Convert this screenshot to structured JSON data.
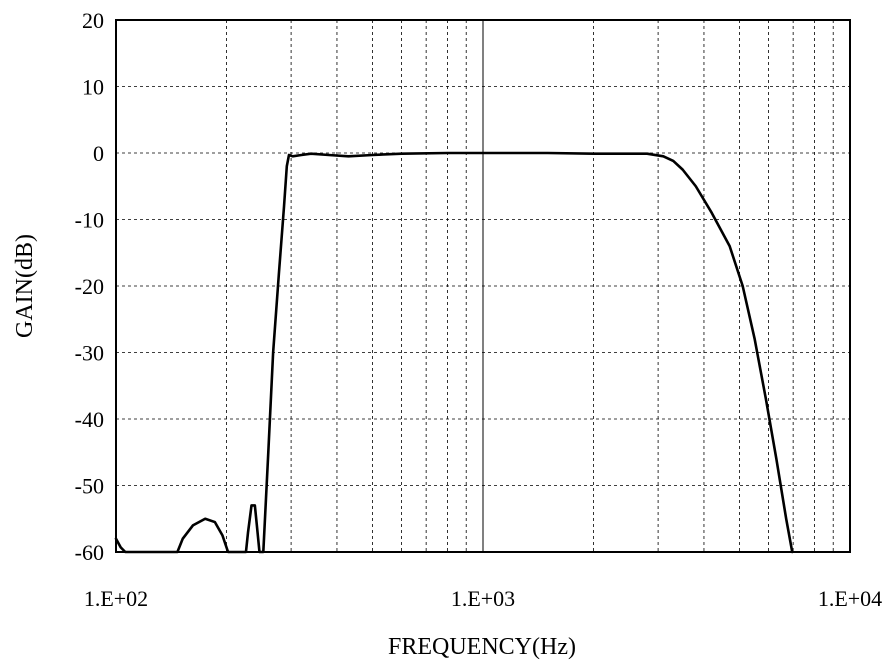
{
  "chart_data": {
    "type": "line",
    "title": "",
    "xlabel": "FREQUENCY(Hz)",
    "ylabel": "GAIN(dB)",
    "xscale": "log",
    "xlim": [
      100,
      10000
    ],
    "ylim": [
      -60,
      20
    ],
    "grid": true,
    "legend": "none",
    "x_tick_values": [
      100,
      1000,
      10000
    ],
    "x_tick_labels": [
      "1.E+02",
      "1.E+03",
      "1.E+04"
    ],
    "y_ticks": [
      20,
      10,
      0,
      -10,
      -20,
      -30,
      -40,
      -50,
      -60
    ],
    "line_color": "#000000",
    "series": [
      {
        "points": [
          [
            100,
            -58
          ],
          [
            103,
            -59.3
          ],
          [
            106,
            -60
          ],
          [
            147,
            -60
          ],
          [
            152,
            -58
          ],
          [
            162,
            -56
          ],
          [
            175,
            -55
          ],
          [
            186,
            -55.5
          ],
          [
            195,
            -57.5
          ],
          [
            202,
            -60
          ],
          [
            226,
            -60
          ],
          [
            229,
            -57
          ],
          [
            234,
            -53
          ],
          [
            239,
            -53
          ],
          [
            242,
            -56
          ],
          [
            246,
            -60
          ],
          [
            252,
            -60
          ],
          [
            260,
            -45
          ],
          [
            268,
            -30
          ],
          [
            278,
            -18
          ],
          [
            287,
            -8
          ],
          [
            292,
            -2
          ],
          [
            296,
            -0.3
          ],
          [
            303,
            -0.5
          ],
          [
            320,
            -0.3
          ],
          [
            340,
            -0.1
          ],
          [
            380,
            -0.3
          ],
          [
            430,
            -0.5
          ],
          [
            500,
            -0.3
          ],
          [
            600,
            -0.1
          ],
          [
            800,
            0
          ],
          [
            1000,
            0
          ],
          [
            1500,
            0
          ],
          [
            2000,
            -0.1
          ],
          [
            2800,
            -0.1
          ],
          [
            3100,
            -0.5
          ],
          [
            3300,
            -1.2
          ],
          [
            3500,
            -2.5
          ],
          [
            3800,
            -5
          ],
          [
            4200,
            -9
          ],
          [
            4700,
            -14
          ],
          [
            5100,
            -20
          ],
          [
            5500,
            -28
          ],
          [
            5900,
            -37
          ],
          [
            6300,
            -46
          ],
          [
            6700,
            -55
          ],
          [
            6960,
            -60
          ]
        ]
      }
    ]
  }
}
